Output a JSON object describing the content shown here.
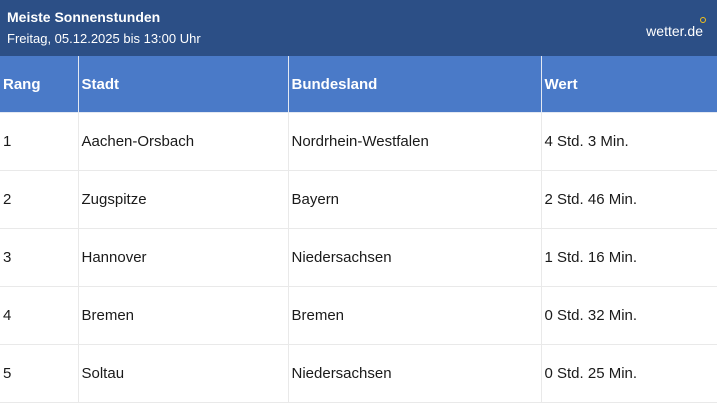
{
  "header": {
    "title": "Meiste Sonnenstunden",
    "subtitle": "Freitag, 05.12.2025 bis 13:00 Uhr",
    "logo": "wetter.de",
    "logo_accent_color": "#f4c21a"
  },
  "colors": {
    "header_background": "#2c4f86",
    "table_header_background": "#4a7ac8"
  },
  "table": {
    "columns": [
      "Rang",
      "Stadt",
      "Bundesland",
      "Wert"
    ],
    "rows": [
      [
        "1",
        "Aachen-Orsbach",
        "Nordrhein-Westfalen",
        "4 Std. 3 Min."
      ],
      [
        "2",
        "Zugspitze",
        "Bayern",
        "2 Std. 46 Min."
      ],
      [
        "3",
        "Hannover",
        "Niedersachsen",
        "1 Std. 16 Min."
      ],
      [
        "4",
        "Bremen",
        "Bremen",
        "0 Std. 32 Min."
      ],
      [
        "5",
        "Soltau",
        "Niedersachsen",
        "0 Std. 25 Min."
      ]
    ]
  }
}
